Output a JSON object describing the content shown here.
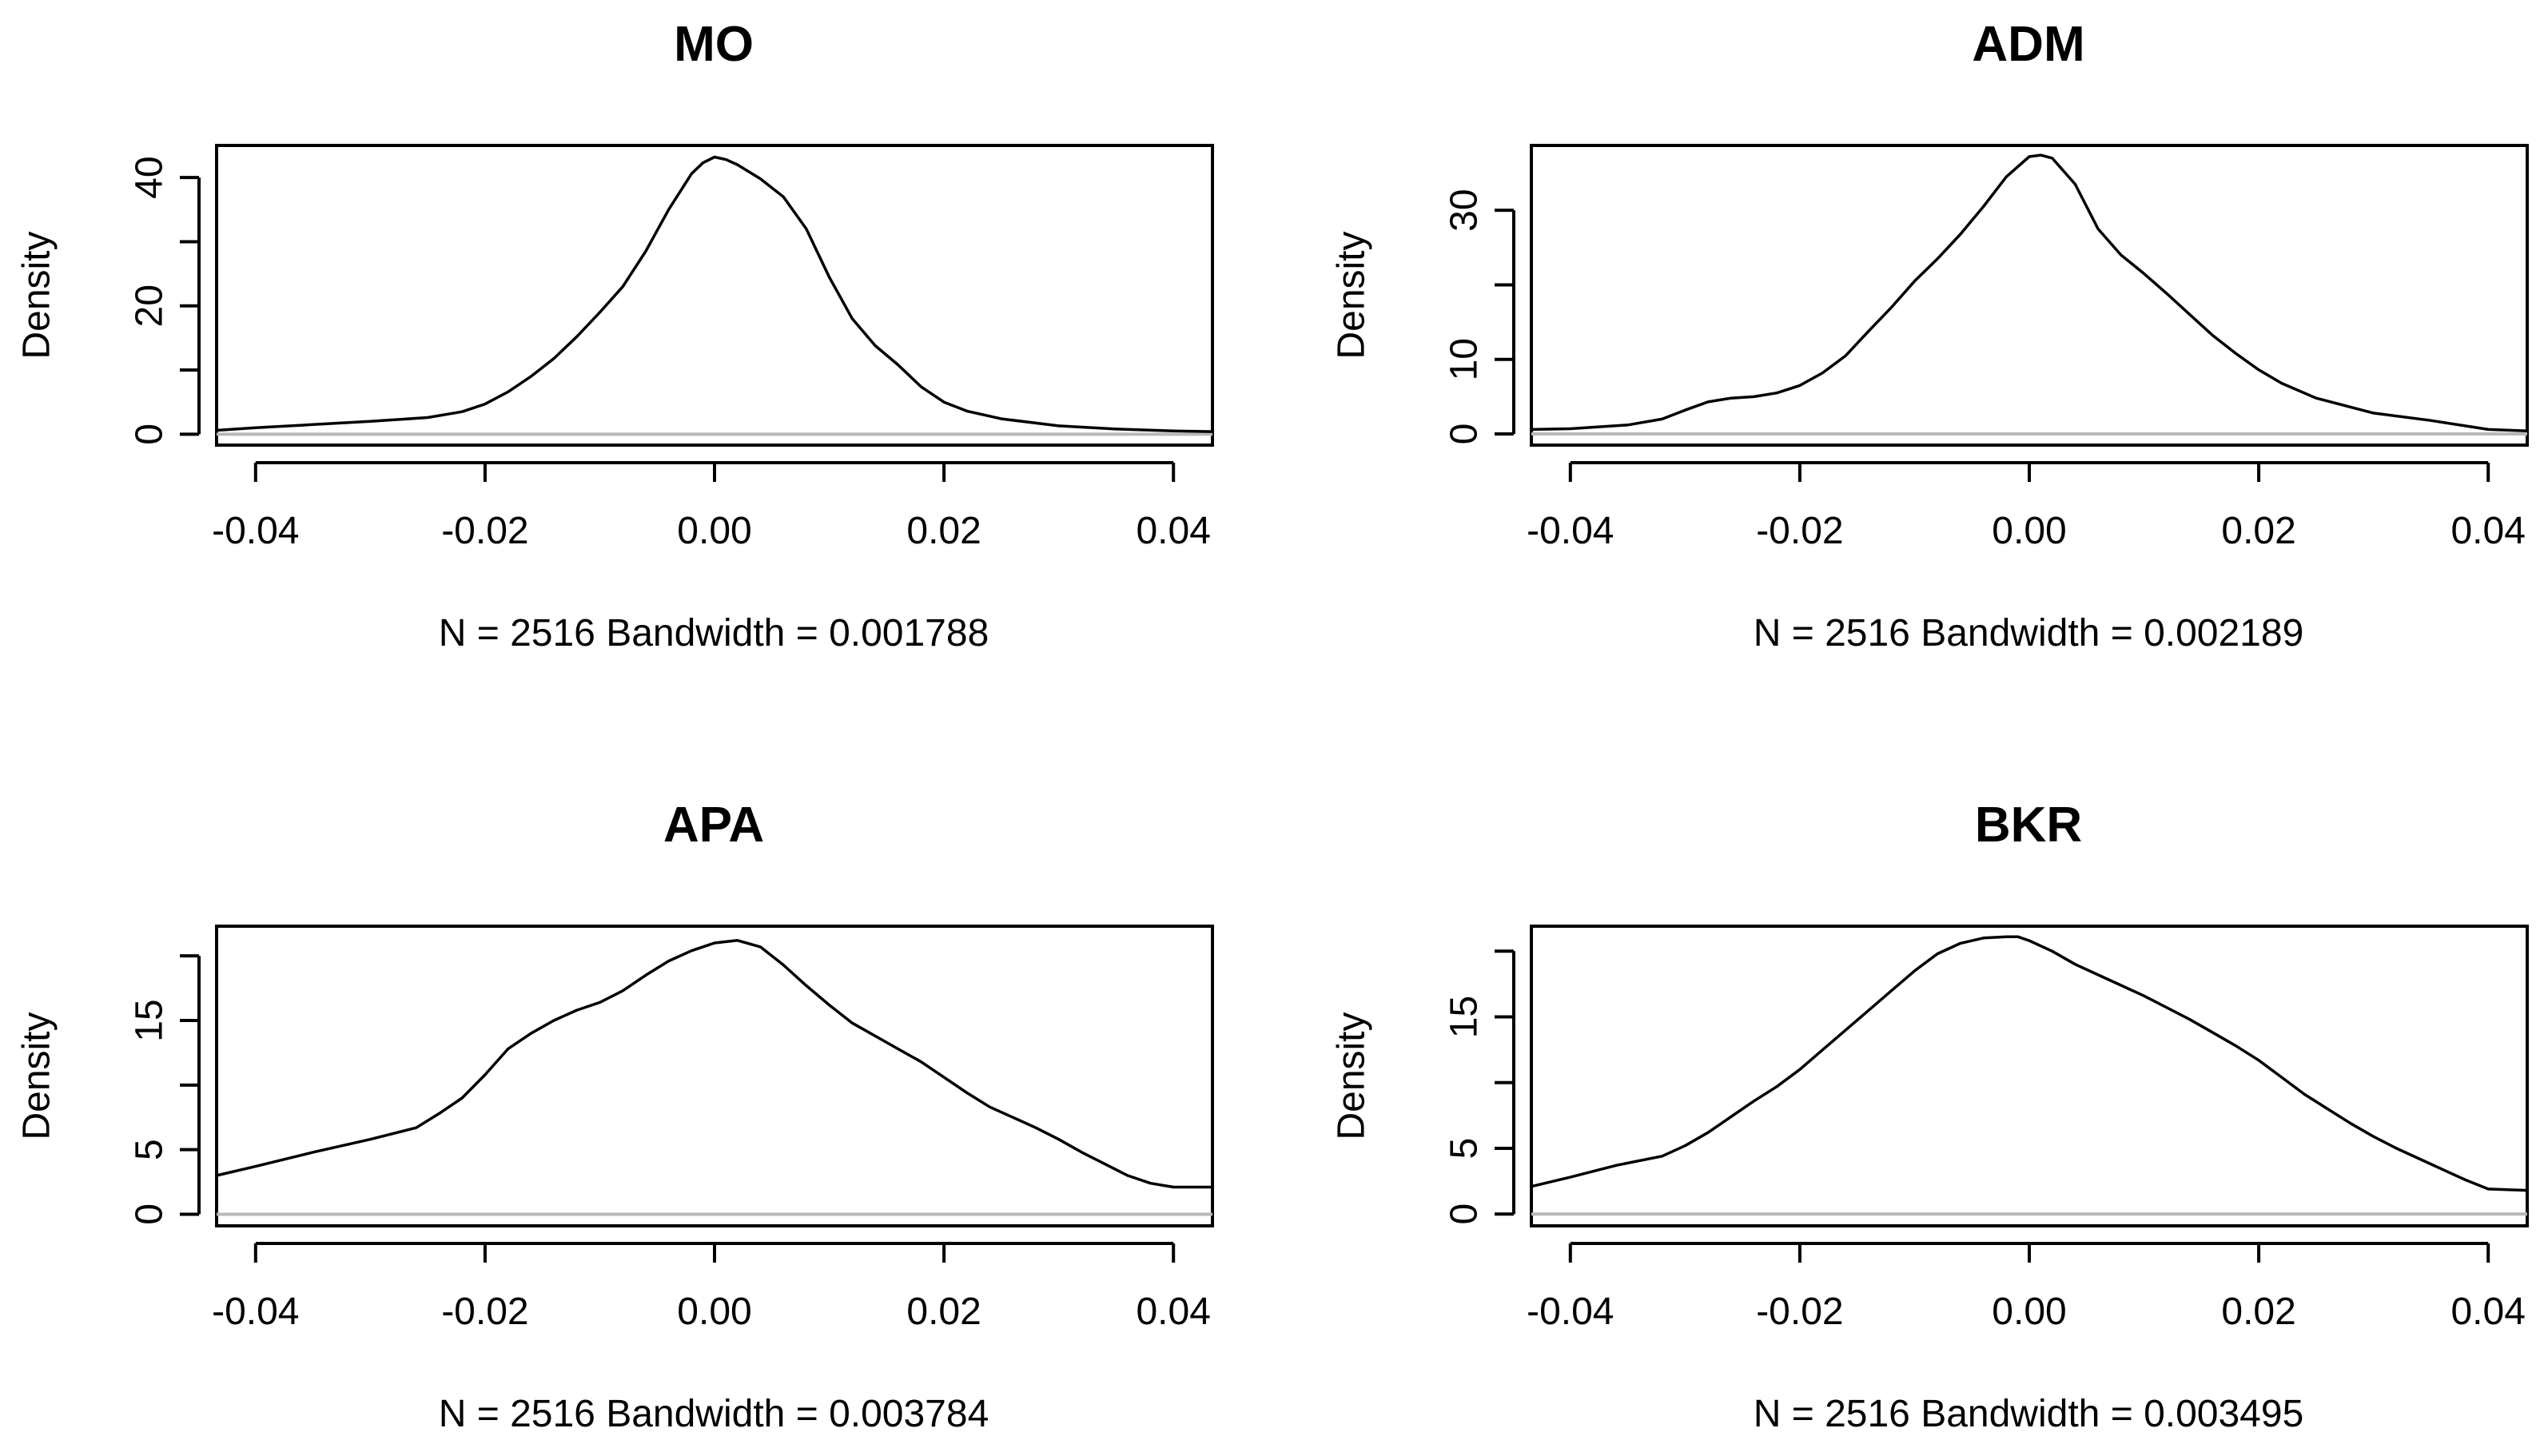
{
  "chart_data": [
    {
      "type": "line",
      "title": "MO",
      "xlabel": "N = 2516   Bandwidth = 0.001788",
      "ylabel": "Density",
      "xlim": [
        -0.0434,
        0.0434
      ],
      "ylim": [
        -1.7,
        45
      ],
      "x_ticks": [
        -0.04,
        -0.02,
        0.0,
        0.02,
        0.04
      ],
      "x_tick_labels": [
        "-0.04",
        "-0.02",
        "0.00",
        "0.02",
        "0.04"
      ],
      "y_ticks": [
        0,
        10,
        20,
        30,
        40
      ],
      "y_tick_labels": [
        "0",
        "",
        "20",
        "",
        "40"
      ],
      "grid": false,
      "series": [
        {
          "name": "density",
          "x": [
            -0.0434,
            -0.04,
            -0.035,
            -0.03,
            -0.025,
            -0.022,
            -0.02,
            -0.018,
            -0.016,
            -0.014,
            -0.012,
            -0.01,
            -0.008,
            -0.006,
            -0.004,
            -0.002,
            -0.001,
            0.0,
            0.001,
            0.002,
            0.004,
            0.006,
            0.008,
            0.01,
            0.012,
            0.014,
            0.016,
            0.018,
            0.02,
            0.022,
            0.025,
            0.03,
            0.035,
            0.04,
            0.0434
          ],
          "y": [
            0.6,
            1.0,
            1.5,
            2.0,
            2.6,
            3.5,
            4.7,
            6.6,
            9.0,
            11.8,
            15.2,
            19.0,
            23.0,
            28.5,
            35.0,
            40.6,
            42.3,
            43.2,
            42.8,
            42.0,
            39.8,
            37.0,
            32.0,
            24.5,
            18.0,
            13.8,
            10.8,
            7.4,
            5.0,
            3.6,
            2.4,
            1.3,
            0.8,
            0.5,
            0.4
          ]
        }
      ]
    },
    {
      "type": "line",
      "title": "ADM",
      "xlabel": "N = 2516   Bandwidth = 0.002189",
      "ylabel": "Density",
      "xlim": [
        -0.0434,
        0.0434
      ],
      "ylim": [
        -1.5,
        38.7
      ],
      "x_ticks": [
        -0.04,
        -0.02,
        0.0,
        0.02,
        0.04
      ],
      "x_tick_labels": [
        "-0.04",
        "-0.02",
        "0.00",
        "0.02",
        "0.04"
      ],
      "y_ticks": [
        0,
        10,
        20,
        30
      ],
      "y_tick_labels": [
        "0",
        "10",
        "",
        "30"
      ],
      "grid": false,
      "series": [
        {
          "name": "density",
          "x": [
            -0.0434,
            -0.04,
            -0.035,
            -0.032,
            -0.03,
            -0.028,
            -0.026,
            -0.024,
            -0.022,
            -0.02,
            -0.018,
            -0.016,
            -0.014,
            -0.012,
            -0.01,
            -0.008,
            -0.006,
            -0.004,
            -0.002,
            0.0,
            0.001,
            0.002,
            0.004,
            0.006,
            0.008,
            0.01,
            0.012,
            0.014,
            0.016,
            0.018,
            0.02,
            0.022,
            0.025,
            0.03,
            0.035,
            0.04,
            0.0434
          ],
          "y": [
            0.6,
            0.7,
            1.2,
            2.0,
            3.2,
            4.3,
            4.8,
            5.0,
            5.5,
            6.5,
            8.2,
            10.5,
            13.8,
            17.0,
            20.5,
            23.5,
            26.8,
            30.5,
            34.5,
            37.2,
            37.4,
            37.0,
            33.5,
            27.5,
            24.0,
            21.5,
            18.8,
            16.0,
            13.2,
            10.8,
            8.6,
            6.8,
            4.8,
            2.8,
            1.8,
            0.6,
            0.4
          ]
        }
      ]
    },
    {
      "type": "line",
      "title": "APA",
      "xlabel": "N = 2516   Bandwidth = 0.003784",
      "ylabel": "Density",
      "xlim": [
        -0.0434,
        0.0434
      ],
      "ylim": [
        -0.9,
        22.3
      ],
      "x_ticks": [
        -0.04,
        -0.02,
        0.0,
        0.02,
        0.04
      ],
      "x_tick_labels": [
        "-0.04",
        "-0.02",
        "0.00",
        "0.02",
        "0.04"
      ],
      "y_ticks": [
        0,
        5,
        10,
        15,
        20
      ],
      "y_tick_labels": [
        "0",
        "5",
        "",
        "15",
        ""
      ],
      "grid": false,
      "series": [
        {
          "name": "density",
          "x": [
            -0.0434,
            -0.04,
            -0.035,
            -0.03,
            -0.026,
            -0.024,
            -0.022,
            -0.02,
            -0.018,
            -0.016,
            -0.014,
            -0.012,
            -0.01,
            -0.008,
            -0.006,
            -0.004,
            -0.002,
            0.0,
            0.002,
            0.004,
            0.006,
            0.008,
            0.01,
            0.012,
            0.014,
            0.016,
            0.018,
            0.02,
            0.022,
            0.024,
            0.026,
            0.028,
            0.03,
            0.032,
            0.034,
            0.036,
            0.038,
            0.04,
            0.0434
          ],
          "y": [
            3.0,
            3.7,
            4.8,
            5.8,
            6.7,
            7.8,
            9.0,
            10.8,
            12.8,
            14.0,
            15.0,
            15.8,
            16.4,
            17.3,
            18.5,
            19.6,
            20.4,
            21.0,
            21.2,
            20.7,
            19.3,
            17.7,
            16.2,
            14.8,
            13.8,
            12.8,
            11.8,
            10.6,
            9.4,
            8.3,
            7.5,
            6.7,
            5.8,
            4.8,
            3.9,
            3.0,
            2.4,
            2.1,
            2.1
          ]
        }
      ]
    },
    {
      "type": "line",
      "title": "BKR",
      "xlabel": "N = 2516   Bandwidth = 0.003495",
      "ylabel": "Density",
      "xlim": [
        -0.0434,
        0.0434
      ],
      "ylim": [
        -0.9,
        21.9
      ],
      "x_ticks": [
        -0.04,
        -0.02,
        0.0,
        0.02,
        0.04
      ],
      "x_tick_labels": [
        "-0.04",
        "-0.02",
        "0.00",
        "0.02",
        "0.04"
      ],
      "y_ticks": [
        0,
        5,
        10,
        15,
        20
      ],
      "y_tick_labels": [
        "0",
        "5",
        "",
        "15",
        ""
      ],
      "grid": false,
      "series": [
        {
          "name": "density",
          "x": [
            -0.0434,
            -0.04,
            -0.036,
            -0.032,
            -0.03,
            -0.028,
            -0.026,
            -0.024,
            -0.022,
            -0.02,
            -0.018,
            -0.016,
            -0.014,
            -0.012,
            -0.01,
            -0.008,
            -0.006,
            -0.004,
            -0.002,
            -0.001,
            0.0,
            0.002,
            0.004,
            0.006,
            0.008,
            0.01,
            0.012,
            0.014,
            0.016,
            0.018,
            0.02,
            0.022,
            0.024,
            0.026,
            0.028,
            0.03,
            0.032,
            0.034,
            0.036,
            0.038,
            0.04,
            0.0434
          ],
          "y": [
            2.1,
            2.8,
            3.7,
            4.4,
            5.2,
            6.2,
            7.4,
            8.6,
            9.7,
            11.0,
            12.5,
            14.0,
            15.5,
            17.0,
            18.5,
            19.8,
            20.6,
            21.0,
            21.1,
            21.1,
            20.8,
            20.0,
            19.0,
            18.2,
            17.4,
            16.6,
            15.7,
            14.8,
            13.8,
            12.8,
            11.7,
            10.4,
            9.1,
            8.0,
            6.9,
            5.9,
            5.0,
            4.2,
            3.4,
            2.6,
            1.9,
            1.8
          ]
        }
      ]
    }
  ]
}
